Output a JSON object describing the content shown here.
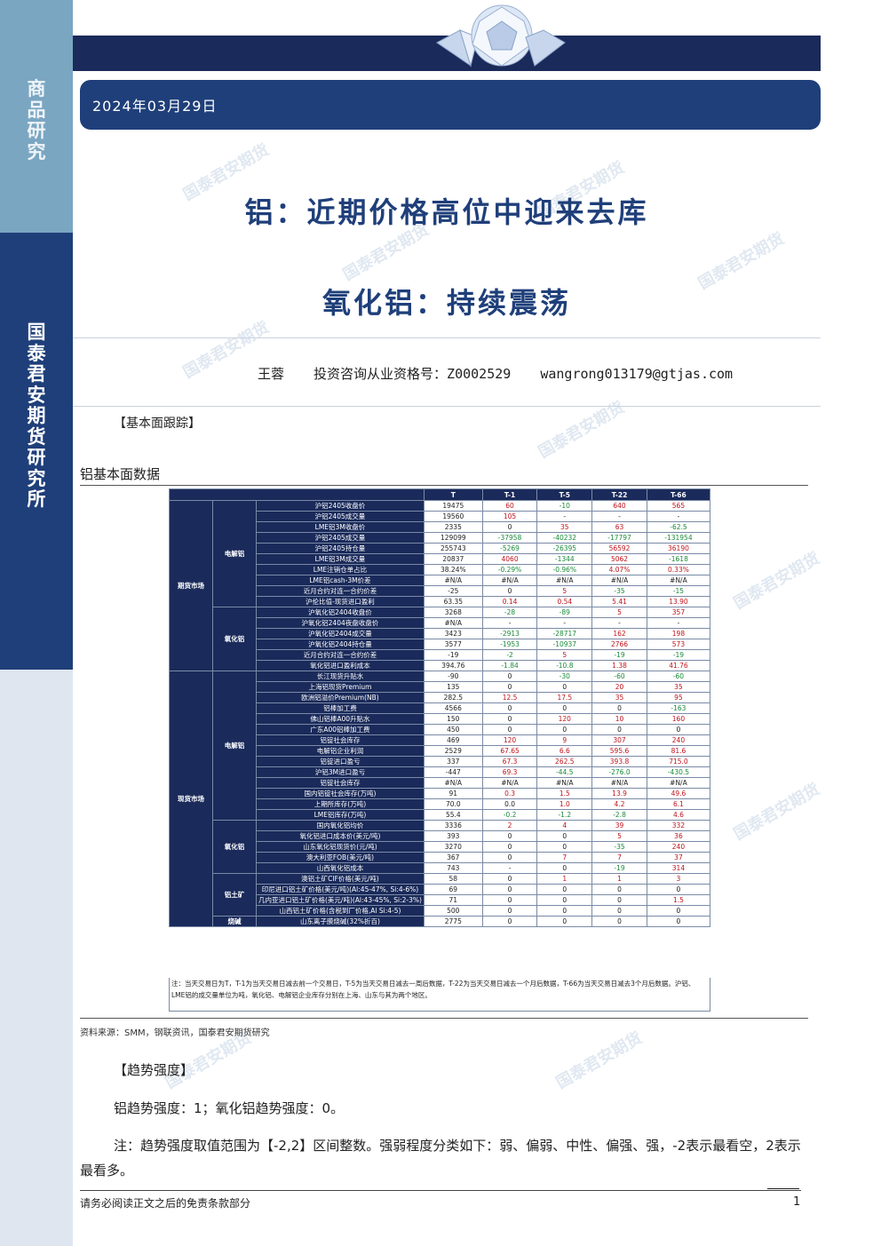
{
  "sidebar": {
    "top_label": "商品研究",
    "bottom_label": "国泰君安期货研究所"
  },
  "header": {
    "date": "2024年03月29日"
  },
  "titles": {
    "main": "铝：近期价格高位中迎来去库",
    "sub": "氧化铝：持续震荡"
  },
  "authors": {
    "name": "王蓉",
    "qualification": "投资咨询从业资格号：Z0002529",
    "email": "wangrong013179@gtjas.com"
  },
  "sections": {
    "fundamentals": "【基本面跟踪】",
    "trend": "【趋势强度】"
  },
  "table": {
    "caption": "铝基本面数据",
    "headers": [
      "T",
      "T-1",
      "T-5",
      "T-22",
      "T-66"
    ],
    "groups": [
      {
        "name": "期货市场",
        "subs": [
          {
            "name": "电解铝",
            "rows": [
              [
                "沪铝2405收盘价",
                "19475",
                "60",
                "-10",
                "640",
                "565"
              ],
              [
                "沪铝2405成交量",
                "19560",
                "105",
                "-",
                "-",
                "-"
              ],
              [
                "LME铝3M收盘价",
                "2335",
                "0",
                "35",
                "63",
                "-62.5"
              ],
              [
                "沪铝2405成交量",
                "129099",
                "-37958",
                "-40232",
                "-17797",
                "-131954"
              ],
              [
                "沪铝2405持仓量",
                "255743",
                "-5269",
                "-26395",
                "56592",
                "36190"
              ],
              [
                "LME铝3M成交量",
                "20837",
                "4060",
                "-1344",
                "5062",
                "-1618"
              ],
              [
                "LME注销仓单占比",
                "38.24%",
                "-0.29%",
                "-0.96%",
                "4.07%",
                "0.33%"
              ],
              [
                "LME铝cash-3M价差",
                "#N/A",
                "#N/A",
                "#N/A",
                "#N/A",
                "#N/A"
              ],
              [
                "近月合约对连一合约价差",
                "-25",
                "0",
                "5",
                "-35",
                "-15"
              ],
              [
                "沪伦比值-现货进口盈利",
                "63.35",
                "0.14",
                "0.54",
                "5.41",
                "13.90"
              ]
            ]
          },
          {
            "name": "氧化铝",
            "rows": [
              [
                "沪氧化铝2404收盘价",
                "3268",
                "-28",
                "-89",
                "5",
                "357"
              ],
              [
                "沪氧化铝2404夜盘收盘价",
                "#N/A",
                "-",
                "-",
                "-",
                "-"
              ],
              [
                "沪氧化铝2404成交量",
                "3423",
                "-2913",
                "-28717",
                "162",
                "198"
              ],
              [
                "沪氧化铝2404持仓量",
                "3577",
                "-1953",
                "-10937",
                "2766",
                "573"
              ],
              [
                "近月合约对连一合约价差",
                "-19",
                "-2",
                "5",
                "-19",
                "-19"
              ],
              [
                "氧化铝进口盈利成本",
                "394.76",
                "-1.84",
                "-10.8",
                "1.38",
                "41.76"
              ]
            ]
          }
        ]
      },
      {
        "name": "现货市场",
        "subs": [
          {
            "name": "电解铝",
            "rows": [
              [
                "长江现货升贴水",
                "-90",
                "0",
                "-30",
                "-60",
                "-60"
              ],
              [
                "上海铝现货Premium",
                "135",
                "0",
                "0",
                "20",
                "35"
              ],
              [
                "欧洲铝溢价Premium(NB)",
                "282.5",
                "12.5",
                "17.5",
                "35",
                "95"
              ],
              [
                "铝棒加工费",
                "4566",
                "0",
                "0",
                "0",
                "-163"
              ],
              [
                "佛山铝棒A00升贴水",
                "150",
                "0",
                "120",
                "10",
                "160"
              ],
              [
                "广东A00铝棒加工费",
                "450",
                "0",
                "0",
                "0",
                "0"
              ],
              [
                "铝锭社会库存",
                "469",
                "120",
                "9",
                "307",
                "240"
              ],
              [
                "电解铝企业利润",
                "2529",
                "67.65",
                "6.6",
                "595.6",
                "81.6"
              ],
              [
                "铝锭进口盈亏",
                "337",
                "67.3",
                "262.5",
                "393.8",
                "715.0"
              ],
              [
                "沪铝3M进口盈亏",
                "-447",
                "69.3",
                "-44.5",
                "-276.0",
                "-430.5"
              ],
              [
                "铝锭社会库存",
                "#N/A",
                "#N/A",
                "#N/A",
                "#N/A",
                "#N/A"
              ],
              [
                "国内铝锭社会库存(万吨)",
                "91",
                "0.3",
                "1.5",
                "13.9",
                "49.6"
              ],
              [
                "上期所库存(万吨)",
                "70.0",
                "0.0",
                "1.0",
                "4.2",
                "6.1"
              ],
              [
                "LME铝库存(万吨)",
                "55.4",
                "-0.2",
                "-1.2",
                "-2.8",
                "4.6"
              ]
            ]
          },
          {
            "name": "氧化铝",
            "rows": [
              [
                "国内氧化铝均价",
                "3336",
                "2",
                "4",
                "39",
                "332"
              ],
              [
                "氧化铝进口成本价(美元/吨)",
                "393",
                "0",
                "0",
                "5",
                "36"
              ],
              [
                "山东氧化铝现货价(元/吨)",
                "3270",
                "0",
                "0",
                "-35",
                "240"
              ],
              [
                "澳大利亚FOB(美元/吨)",
                "367",
                "0",
                "7",
                "7",
                "37"
              ],
              [
                "山西氧化铝成本",
                "743",
                "-",
                "0",
                "-19",
                "314"
              ]
            ]
          },
          {
            "name": "铝土矿",
            "rows": [
              [
                "澳铝土矿CIF价格(美元/吨)",
                "58",
                "0",
                "1",
                "1",
                "3"
              ],
              [
                "印尼进口铝土矿价格(美元/吨)(Al:45-47%, Si:4-6%)",
                "69",
                "0",
                "0",
                "0",
                "0"
              ],
              [
                "几内亚进口铝土矿价格(美元/吨)(Al:43-45%, Si:2-3%)",
                "71",
                "0",
                "0",
                "0",
                "1.5"
              ],
              [
                "山西铝土矿价格(含税到厂价格,Al Si:4-5)",
                "500",
                "0",
                "0",
                "0",
                "0"
              ]
            ]
          },
          {
            "name": "烧碱",
            "rows": [
              [
                "山东离子膜烧碱(32%折百)",
                "2775",
                "0",
                "0",
                "0",
                "0"
              ]
            ]
          }
        ]
      }
    ],
    "note": "注：当天交易日为T，T-1为当天交易日减去前一个交易日，T-5为当天交易日减去一周后数据，T-22为当天交易日减去一个月后数据，T-66为当天交易日减去3个月后数据。沪铝、LME铝的成交量单位为吨，氧化铝、电解铝企业库存分别在上海、山东与其为两个地区。"
  },
  "source": "资料来源：SMM，钢联资讯，国泰君安期货研究",
  "trend_strength": "铝趋势强度：1；氧化铝趋势强度：0。",
  "trend_note": "注：趋势强度取值范围为【-2,2】区间整数。强弱程度分类如下：弱、偏弱、中性、偏强、强，-2表示最看空，2表示最看多。",
  "footer": {
    "disclaimer": "请务必阅读正文之后的免责条款部分",
    "page": "1"
  },
  "colors": {
    "navy": "#1a2a5a",
    "blue": "#1f3f7a",
    "sidebar_light": "#7aa6c2",
    "negative": "#1b8a3a",
    "positive": "#c0141c"
  }
}
